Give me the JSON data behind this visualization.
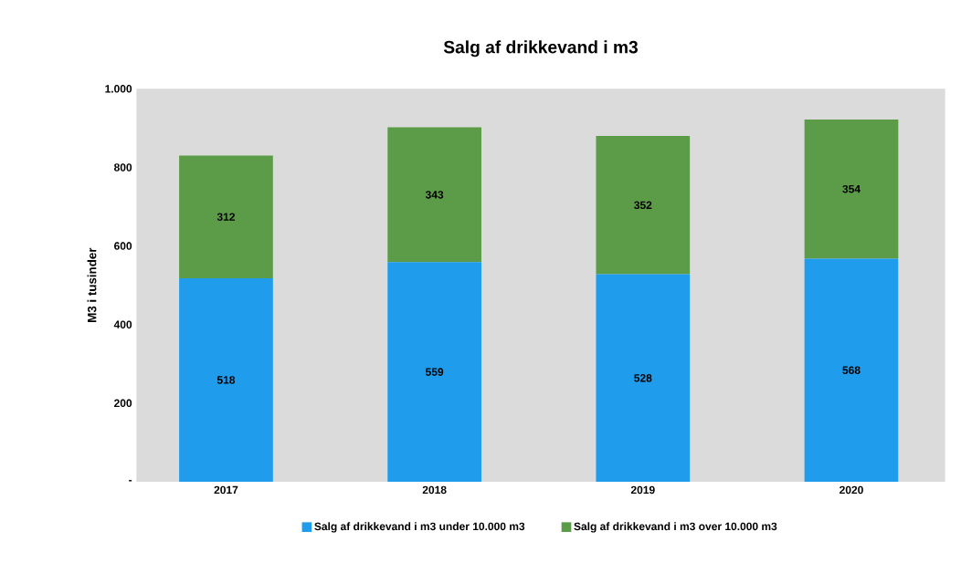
{
  "chart_data": {
    "type": "bar",
    "title": "Salg af drikkevand i m3",
    "ylabel": "M3 i tusinder",
    "categories": [
      "2017",
      "2018",
      "2019",
      "2020"
    ],
    "series": [
      {
        "name": "Salg af drikkevand i m3 under 10.000 m3",
        "color": "#1f9cec",
        "values": [
          518,
          559,
          528,
          568
        ]
      },
      {
        "name": "Salg af drikkevand i m3 over 10.000 m3",
        "color": "#5c9b48",
        "values": [
          312,
          343,
          352,
          354
        ]
      }
    ],
    "stacked": true,
    "ylim": [
      0,
      1000
    ],
    "yticks": [
      {
        "value": 0,
        "label": "-"
      },
      200,
      400,
      600,
      800,
      {
        "value": 1000,
        "label": "1.000"
      }
    ],
    "data_labels": true,
    "legend": "bottom",
    "grid": false
  }
}
